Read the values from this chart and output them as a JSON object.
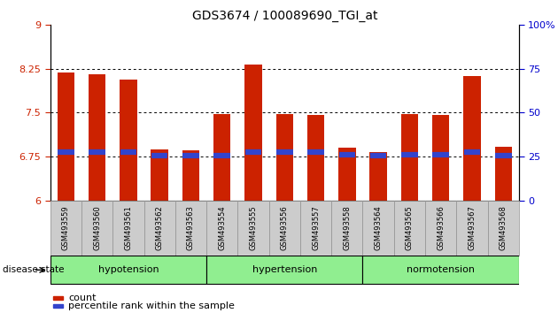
{
  "title": "GDS3674 / 100089690_TGI_at",
  "samples": [
    "GSM493559",
    "GSM493560",
    "GSM493561",
    "GSM493562",
    "GSM493563",
    "GSM493554",
    "GSM493555",
    "GSM493556",
    "GSM493557",
    "GSM493558",
    "GSM493564",
    "GSM493565",
    "GSM493566",
    "GSM493567",
    "GSM493568"
  ],
  "bar_tops": [
    8.19,
    8.16,
    8.07,
    6.87,
    6.85,
    7.47,
    8.32,
    7.48,
    7.46,
    6.9,
    6.82,
    7.48,
    7.46,
    8.12,
    6.92
  ],
  "blue_markers": [
    6.83,
    6.82,
    6.83,
    6.77,
    6.77,
    6.77,
    6.83,
    6.82,
    6.82,
    6.78,
    6.77,
    6.78,
    6.78,
    6.83,
    6.77
  ],
  "bar_base": 6.0,
  "ylim_left": [
    6.0,
    9.0
  ],
  "ylim_right": [
    0,
    100
  ],
  "yticks_left": [
    6.0,
    6.75,
    7.5,
    8.25,
    9.0
  ],
  "yticks_right": [
    0,
    25,
    50,
    75,
    100
  ],
  "ytick_labels_left": [
    "6",
    "6.75",
    "7.5",
    "8.25",
    "9"
  ],
  "ytick_labels_right": [
    "0",
    "25",
    "50",
    "75",
    "100%"
  ],
  "group_labels": [
    "hypotension",
    "hypertension",
    "normotension"
  ],
  "group_starts": [
    0,
    5,
    10
  ],
  "group_ends": [
    5,
    10,
    15
  ],
  "group_color": "#90ee90",
  "bar_color": "#cc2200",
  "blue_color": "#3344cc",
  "bar_width": 0.55,
  "grid_color": "black",
  "left_tick_color": "#cc2200",
  "right_tick_color": "#0000cc",
  "disease_state_label": "disease state",
  "legend_items": [
    {
      "label": "count",
      "color": "#cc2200"
    },
    {
      "label": "percentile rank within the sample",
      "color": "#3344cc"
    }
  ],
  "tick_bg_color": "#cccccc",
  "tick_border_color": "#999999"
}
